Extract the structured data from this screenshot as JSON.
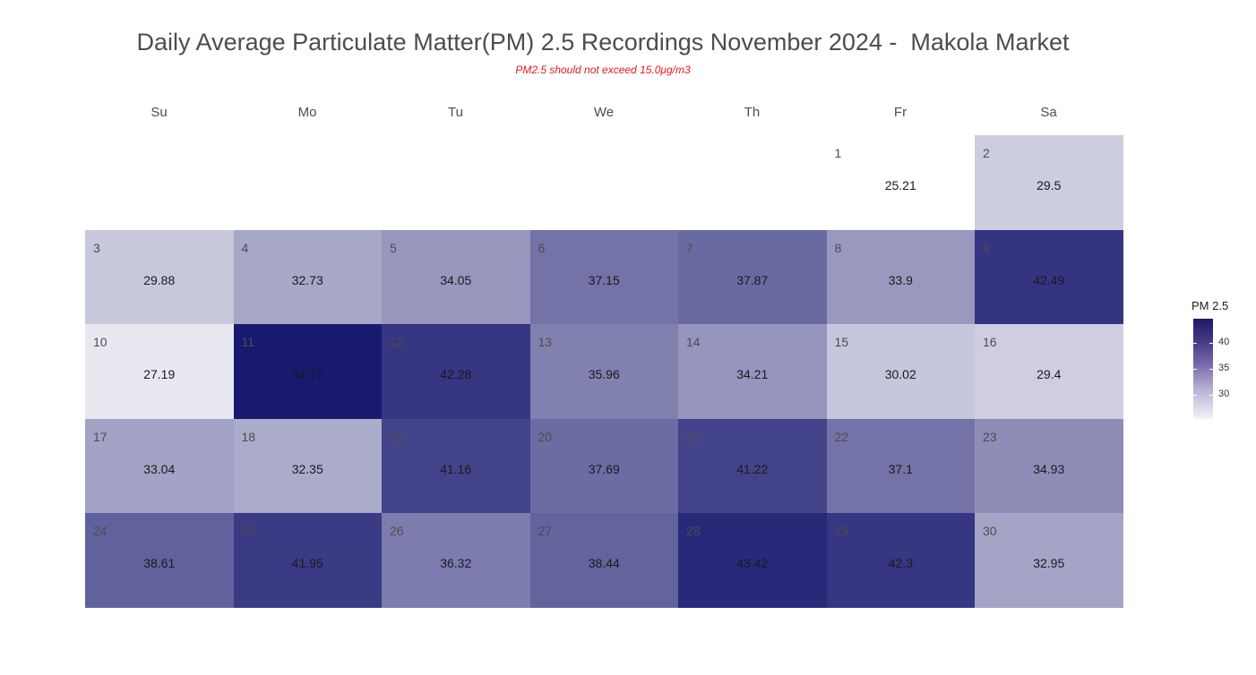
{
  "chart_data": {
    "type": "heatmap",
    "title": "Daily Average Particulate Matter(PM) 2.5 Recordings November 2024 -  Makola Market",
    "subtitle": "PM2.5 should not exceed 15.0μg/m3",
    "weekdays": [
      "Su",
      "Mo",
      "Tu",
      "We",
      "Th",
      "Fr",
      "Sa"
    ],
    "first_weekday_index": 5,
    "days": [
      {
        "day": "1",
        "value": 25.21
      },
      {
        "day": "2",
        "value": 29.5
      },
      {
        "day": "3",
        "value": 29.88
      },
      {
        "day": "4",
        "value": 32.73
      },
      {
        "day": "5",
        "value": 34.05
      },
      {
        "day": "6",
        "value": 37.15
      },
      {
        "day": "7",
        "value": 37.87
      },
      {
        "day": "8",
        "value": 33.9
      },
      {
        "day": "9",
        "value": 42.49
      },
      {
        "day": "10",
        "value": 27.19
      },
      {
        "day": "11",
        "value": 44.77
      },
      {
        "day": "12",
        "value": 42.28
      },
      {
        "day": "13",
        "value": 35.96
      },
      {
        "day": "14",
        "value": 34.21
      },
      {
        "day": "15",
        "value": 30.02
      },
      {
        "day": "16",
        "value": 29.4
      },
      {
        "day": "17",
        "value": 33.04
      },
      {
        "day": "18",
        "value": 32.35
      },
      {
        "day": "19",
        "value": 41.16
      },
      {
        "day": "20",
        "value": 37.69
      },
      {
        "day": "21",
        "value": 41.22
      },
      {
        "day": "22",
        "value": 37.1
      },
      {
        "day": "23",
        "value": 34.93
      },
      {
        "day": "24",
        "value": 38.61
      },
      {
        "day": "25",
        "value": 41.95
      },
      {
        "day": "26",
        "value": 36.32
      },
      {
        "day": "27",
        "value": 38.44
      },
      {
        "day": "28",
        "value": 43.42
      },
      {
        "day": "29",
        "value": 42.3
      },
      {
        "day": "30",
        "value": 32.95
      }
    ],
    "legend": {
      "title": "PM 2.5",
      "ticks": [
        "40",
        "35",
        "30"
      ],
      "tick_values": [
        40,
        35,
        30
      ],
      "range": [
        25.21,
        44.77
      ],
      "low_color": "#ffffff",
      "high_color": "#191970",
      "position": "right"
    }
  }
}
